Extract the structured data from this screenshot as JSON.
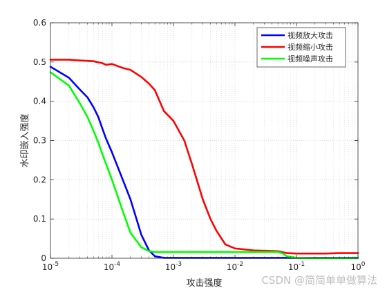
{
  "chart_data": {
    "type": "line",
    "title": "",
    "xlabel": "攻击强度",
    "ylabel": "水印嵌入强度",
    "xscale": "log",
    "xlim": [
      1e-05,
      1
    ],
    "ylim": [
      0,
      0.6
    ],
    "xticks": [
      1e-05,
      0.0001,
      0.001,
      0.01,
      0.1,
      1
    ],
    "xtick_labels": [
      {
        "base": "10",
        "exp": "-5"
      },
      {
        "base": "10",
        "exp": "-4"
      },
      {
        "base": "10",
        "exp": "-3"
      },
      {
        "base": "10",
        "exp": "-2"
      },
      {
        "base": "10",
        "exp": "-1"
      },
      {
        "base": "10",
        "exp": "0"
      }
    ],
    "yticks": [
      0,
      0.1,
      0.2,
      0.3,
      0.4,
      0.5,
      0.6
    ],
    "ytick_labels": [
      "0",
      "0.1",
      "0.2",
      "0.3",
      "0.4",
      "0.5",
      "0.6"
    ],
    "grid": "dotted, major and minor on x",
    "legend_position": "top-right",
    "series": [
      {
        "name": "视频放大攻击",
        "color": "#0000ff",
        "points": [
          [
            1e-05,
            0.488
          ],
          [
            2e-05,
            0.46
          ],
          [
            3e-05,
            0.43
          ],
          [
            4e-05,
            0.41
          ],
          [
            5e-05,
            0.385
          ],
          [
            6e-05,
            0.36
          ],
          [
            7e-05,
            0.33
          ],
          [
            8e-05,
            0.305
          ],
          [
            0.0001,
            0.27
          ],
          [
            0.00015,
            0.2
          ],
          [
            0.0002,
            0.15
          ],
          [
            0.0003,
            0.06
          ],
          [
            0.0004,
            0.02
          ],
          [
            0.0005,
            0.005
          ],
          [
            0.0007,
            0.001
          ],
          [
            0.001,
            0.001
          ],
          [
            0.01,
            0.001
          ],
          [
            0.1,
            0.001
          ],
          [
            1,
            0.001
          ]
        ]
      },
      {
        "name": "视频缩小攻击",
        "color": "#ff0000",
        "points": [
          [
            1e-05,
            0.506
          ],
          [
            2e-05,
            0.506
          ],
          [
            3e-05,
            0.504
          ],
          [
            4e-05,
            0.503
          ],
          [
            5e-05,
            0.502
          ],
          [
            7e-05,
            0.497
          ],
          [
            8e-05,
            0.493
          ],
          [
            0.0001,
            0.495
          ],
          [
            0.00015,
            0.485
          ],
          [
            0.0002,
            0.48
          ],
          [
            0.0003,
            0.462
          ],
          [
            0.0004,
            0.445
          ],
          [
            0.0005,
            0.428
          ],
          [
            0.0007,
            0.375
          ],
          [
            0.001,
            0.35
          ],
          [
            0.0015,
            0.3
          ],
          [
            0.002,
            0.24
          ],
          [
            0.003,
            0.15
          ],
          [
            0.004,
            0.1
          ],
          [
            0.005,
            0.07
          ],
          [
            0.007,
            0.035
          ],
          [
            0.01,
            0.025
          ],
          [
            0.02,
            0.02
          ],
          [
            0.05,
            0.018
          ],
          [
            0.07,
            0.013
          ],
          [
            0.1,
            0.012
          ],
          [
            0.3,
            0.012
          ],
          [
            0.5,
            0.013
          ],
          [
            1,
            0.013
          ]
        ]
      },
      {
        "name": "视频噪声攻击",
        "color": "#00ff00",
        "points": [
          [
            1e-05,
            0.474
          ],
          [
            2e-05,
            0.44
          ],
          [
            3e-05,
            0.395
          ],
          [
            4e-05,
            0.36
          ],
          [
            5e-05,
            0.325
          ],
          [
            6e-05,
            0.295
          ],
          [
            7e-05,
            0.265
          ],
          [
            0.0001,
            0.2
          ],
          [
            0.00015,
            0.12
          ],
          [
            0.0002,
            0.065
          ],
          [
            0.0003,
            0.028
          ],
          [
            0.0004,
            0.018
          ],
          [
            0.0005,
            0.016
          ],
          [
            0.001,
            0.016
          ],
          [
            0.01,
            0.016
          ],
          [
            0.05,
            0.016
          ],
          [
            0.06,
            0.012
          ],
          [
            0.07,
            0.005
          ],
          [
            0.1,
            0.001
          ],
          [
            0.2,
            0.0
          ],
          [
            1,
            0.0
          ]
        ]
      }
    ]
  },
  "watermark": "CSDN @简简单单做算法"
}
